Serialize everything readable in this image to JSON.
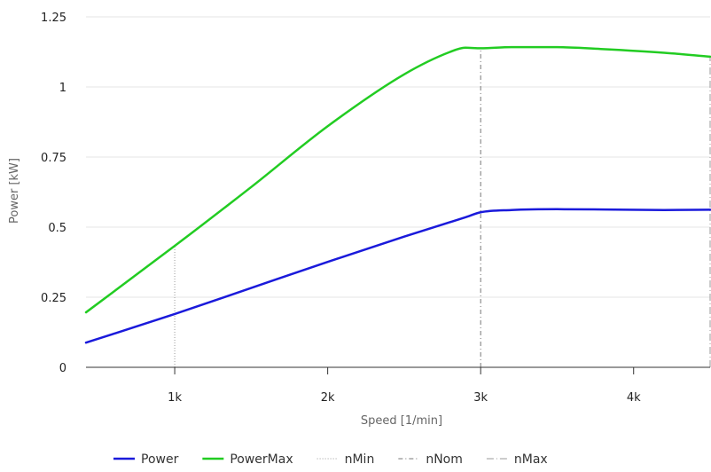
{
  "chart_data": {
    "type": "line",
    "xlabel": "Speed [1/min]",
    "ylabel": "Power [kW]",
    "xlim": [
      420,
      4500
    ],
    "ylim": [
      0,
      1.25
    ],
    "x_ticks": [
      {
        "value": 1000,
        "label": "1k"
      },
      {
        "value": 2000,
        "label": "2k"
      },
      {
        "value": 3000,
        "label": "3k"
      },
      {
        "value": 4000,
        "label": "4k"
      }
    ],
    "y_ticks": [
      {
        "value": 0,
        "label": "0"
      },
      {
        "value": 0.25,
        "label": "0.25"
      },
      {
        "value": 0.5,
        "label": "0.5"
      },
      {
        "value": 0.75,
        "label": "0.75"
      },
      {
        "value": 1,
        "label": "1"
      },
      {
        "value": 1.25,
        "label": "1.25"
      }
    ],
    "grid": "horizontal",
    "legend_position": "bottom",
    "series": [
      {
        "name": "Power",
        "color": "#1a1adb",
        "x": [
          420,
          1000,
          1500,
          2000,
          2500,
          2900,
          3000,
          3200,
          3500,
          3800,
          4200,
          4500
        ],
        "y": [
          0.088,
          0.19,
          0.283,
          0.376,
          0.466,
          0.535,
          0.553,
          0.561,
          0.564,
          0.563,
          0.561,
          0.562
        ]
      },
      {
        "name": "PowerMax",
        "color": "#22cc22",
        "x": [
          420,
          1000,
          1500,
          2000,
          2500,
          2800,
          2900,
          3000,
          3200,
          3500,
          3800,
          4200,
          4500
        ],
        "y": [
          0.196,
          0.433,
          0.643,
          0.86,
          1.045,
          1.125,
          1.14,
          1.138,
          1.142,
          1.142,
          1.135,
          1.122,
          1.108
        ]
      }
    ],
    "vertical_markers": [
      {
        "name": "nMin",
        "x": 1000,
        "color": "#999999",
        "dash": "1,2",
        "visible": true
      },
      {
        "name": "nNom",
        "x": 3000,
        "color": "#777777",
        "dash": "5,3,1,3",
        "visible": true
      },
      {
        "name": "nMax",
        "x": 4500,
        "color": "#999999",
        "dash": "8,3,1,3",
        "visible": true
      }
    ]
  }
}
